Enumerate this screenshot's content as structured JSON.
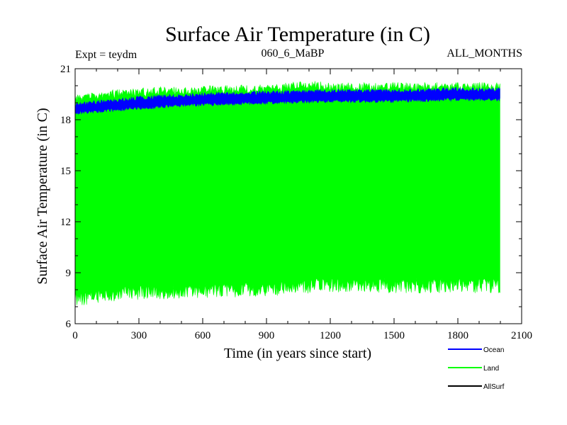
{
  "chart_data": {
    "type": "line",
    "title": "Surface Air Temperature (in C)",
    "subtitle_left": "Expt = teydm",
    "subtitle_center": "060_6_MaBP",
    "subtitle_right": "ALL_MONTHS",
    "xlabel": "Time (in years since start)",
    "ylabel": "Surface Air Temperature (in C)",
    "xlim": [
      0,
      2100
    ],
    "ylim": [
      6,
      21
    ],
    "x_ticks": [
      0,
      300,
      600,
      900,
      1200,
      1500,
      1800,
      2100
    ],
    "y_ticks": [
      6,
      9,
      12,
      15,
      18,
      21
    ],
    "x_tick_labels": [
      "0",
      "300",
      "600",
      "900",
      "1200",
      "1500",
      "1800",
      "2100"
    ],
    "y_tick_labels": [
      "6",
      "9",
      "12",
      "15",
      "18",
      "21"
    ],
    "data_x_range": [
      0,
      2000
    ],
    "series": [
      {
        "name": "Land",
        "color": "#00ff00",
        "envelope_low_x": [
          0,
          100,
          300,
          600,
          900,
          1200,
          1500,
          1800,
          2000
        ],
        "envelope_low": [
          7.0,
          7.2,
          7.4,
          7.5,
          7.6,
          7.8,
          7.8,
          7.8,
          7.8
        ],
        "envelope_high_x": [
          0,
          100,
          300,
          600,
          900,
          1100,
          1200,
          1500,
          1800,
          2000
        ],
        "envelope_high": [
          19.5,
          19.7,
          19.9,
          20.0,
          20.1,
          20.3,
          20.2,
          20.2,
          20.2,
          20.2
        ]
      },
      {
        "name": "Ocean",
        "color": "#0000ff",
        "envelope_low_x": [
          0,
          300,
          600,
          900,
          1200,
          1500,
          1800,
          2000
        ],
        "envelope_low": [
          18.3,
          18.6,
          18.8,
          18.9,
          19.0,
          19.0,
          19.1,
          19.1
        ],
        "envelope_high_x": [
          0,
          300,
          600,
          900,
          1200,
          1500,
          1800,
          2000
        ],
        "envelope_high": [
          19.0,
          19.4,
          19.6,
          19.7,
          19.8,
          19.8,
          19.9,
          19.9
        ]
      },
      {
        "name": "AllSurf",
        "color": "#000000"
      }
    ],
    "legend_placement": "bottom-right",
    "legend": [
      "Ocean",
      "Land",
      "AllSurf"
    ]
  }
}
